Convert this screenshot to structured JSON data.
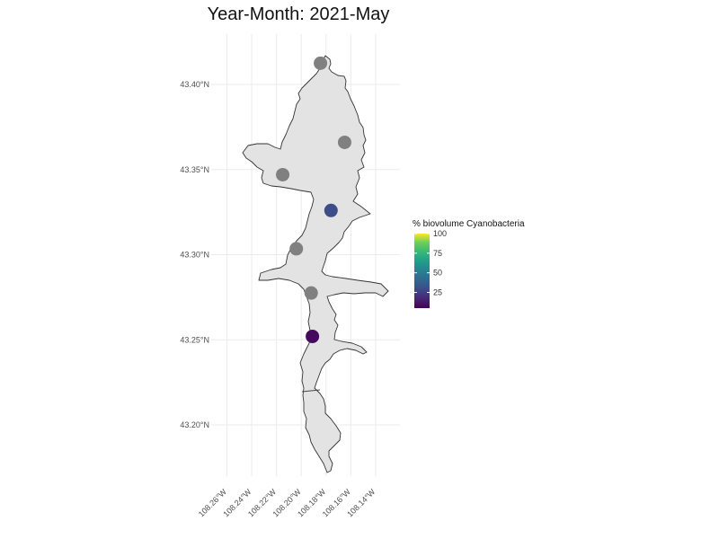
{
  "title": "Year-Month: 2021-May",
  "chart_data": {
    "type": "scatter",
    "title": "Year-Month: 2021-May",
    "xlabel": "",
    "ylabel": "",
    "xlim": [
      -108.268,
      -108.137
    ],
    "ylim": [
      43.167,
      43.416
    ],
    "x_ticks": [
      {
        "value": -108.26,
        "label": "108.26°W"
      },
      {
        "value": -108.24,
        "label": "108.24°W"
      },
      {
        "value": -108.22,
        "label": "108.22°W"
      },
      {
        "value": -108.2,
        "label": "108.20°W"
      },
      {
        "value": -108.18,
        "label": "108.18°W"
      },
      {
        "value": -108.16,
        "label": "108.16°W"
      },
      {
        "value": -108.14,
        "label": "108.14°W"
      }
    ],
    "y_ticks": [
      {
        "value": 43.2,
        "label": "43.20°N"
      },
      {
        "value": 43.25,
        "label": "43.25°N"
      },
      {
        "value": 43.3,
        "label": "43.30°N"
      },
      {
        "value": 43.35,
        "label": "43.35°N"
      },
      {
        "value": 43.4,
        "label": "43.40°N"
      }
    ],
    "grid": true,
    "points": [
      {
        "lon": -108.1845,
        "lat": 43.4125,
        "value": null
      },
      {
        "lon": -108.165,
        "lat": 43.366,
        "value": null
      },
      {
        "lon": -108.215,
        "lat": 43.347,
        "value": null
      },
      {
        "lon": -108.176,
        "lat": 43.326,
        "value": 30
      },
      {
        "lon": -108.204,
        "lat": 43.3035,
        "value": null
      },
      {
        "lon": -108.192,
        "lat": 43.2775,
        "value": null
      },
      {
        "lon": -108.191,
        "lat": 43.252,
        "value": 8
      }
    ],
    "na_color": "#808080",
    "colorbar": {
      "title": "% biovolume Cyanobacteria",
      "min": 5,
      "max": 100,
      "ticks": [
        25,
        50,
        75,
        100
      ],
      "palette": "viridis",
      "placement": "right"
    }
  }
}
